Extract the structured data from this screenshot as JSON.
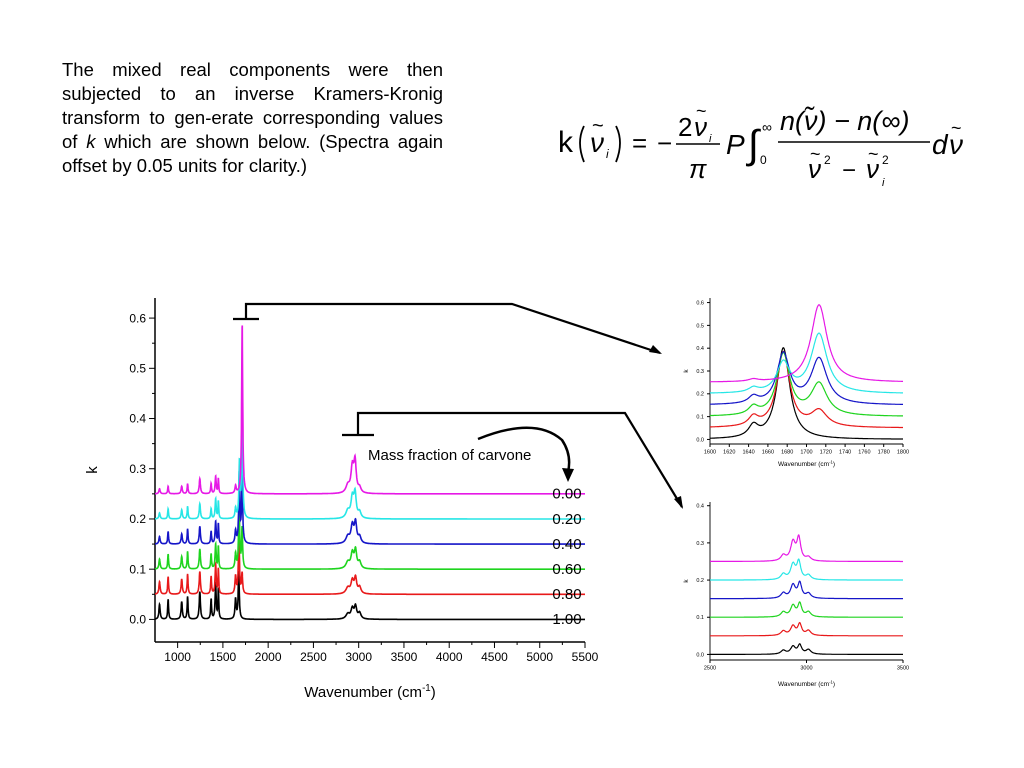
{
  "text": {
    "paragraph_before_k": "The mixed real components were then subjected to an inverse Kramers-Kronig transform to gen-erate corresponding values of",
    "paragraph_k": "k",
    "paragraph_after_k": "which are shown below.  (Spectra again offset by 0.05 units for clarity.)"
  },
  "formula": {
    "lhs": "k",
    "eq": "=",
    "minus": "−",
    "two": "2",
    "pi": "π",
    "P": "P",
    "int_upper": "∞",
    "int_lower": "0",
    "numerator": "n(ν̃) − n(∞)",
    "denominator_sup": "2",
    "d": "d",
    "sub_i": "i"
  },
  "colors": {
    "1.00": "#000000",
    "0.80": "#e8191a",
    "0.60": "#1ed41e",
    "0.40": "#1515c8",
    "0.20": "#26e6e6",
    "0.00": "#e619e6"
  },
  "annotation": "Mass fraction of carvone",
  "chart_data": [
    {
      "type": "line",
      "xlabel": "Wavenumber (cm-1)",
      "xlabel_main": "Wavenumber (cm",
      "xlabel_sup": "-1",
      "xlabel_close": ")",
      "ylabel": "k",
      "xlim": [
        750,
        5500
      ],
      "ylim": [
        -0.045,
        0.64
      ],
      "xticks": [
        1000,
        1500,
        2000,
        2500,
        3000,
        3500,
        4000,
        4500,
        5000,
        5500
      ],
      "xtick_labels": [
        "1000",
        "1500",
        "2000",
        "2500",
        "3000",
        "3500",
        "4000",
        "4500",
        "5000",
        "5500"
      ],
      "yticks": [
        0.0,
        0.1,
        0.2,
        0.3,
        0.4,
        0.5,
        0.6
      ],
      "ytick_labels": [
        "0.0",
        "0.1",
        "0.2",
        "0.3",
        "0.4",
        "0.5",
        "0.6"
      ],
      "series": [
        {
          "name": "1.00",
          "offset": 0.0,
          "label_y": 1.0,
          "peaks": [
            [
              800,
              0.03,
              8
            ],
            [
              895,
              0.04,
              6
            ],
            [
              1045,
              0.035,
              8
            ],
            [
              1110,
              0.045,
              6
            ],
            [
              1245,
              0.055,
              8
            ],
            [
              1370,
              0.04,
              6
            ],
            [
              1420,
              0.07,
              7
            ],
            [
              1450,
              0.06,
              5
            ],
            [
              1640,
              0.04,
              8
            ],
            [
              1675,
              0.095,
              7
            ],
            [
              2880,
              0.01,
              25
            ],
            [
              2930,
              0.02,
              18
            ],
            [
              2965,
              0.024,
              15
            ],
            [
              3010,
              0.012,
              18
            ]
          ]
        },
        {
          "name": "0.80",
          "offset": 0.05,
          "label_y": 0.8,
          "peaks": [
            [
              800,
              0.025,
              8
            ],
            [
              895,
              0.035,
              6
            ],
            [
              1045,
              0.03,
              8
            ],
            [
              1110,
              0.04,
              6
            ],
            [
              1245,
              0.045,
              8
            ],
            [
              1370,
              0.035,
              6
            ],
            [
              1420,
              0.06,
              7
            ],
            [
              1450,
              0.05,
              5
            ],
            [
              1640,
              0.035,
              8
            ],
            [
              1677,
              0.12,
              7
            ],
            [
              1712,
              0.04,
              7
            ],
            [
              2880,
              0.012,
              25
            ],
            [
              2930,
              0.025,
              18
            ],
            [
              2965,
              0.03,
              15
            ],
            [
              3010,
              0.013,
              18
            ]
          ]
        },
        {
          "name": "0.60",
          "offset": 0.1,
          "label_y": 0.6,
          "peaks": [
            [
              800,
              0.02,
              8
            ],
            [
              895,
              0.03,
              6
            ],
            [
              1045,
              0.025,
              8
            ],
            [
              1110,
              0.035,
              6
            ],
            [
              1245,
              0.04,
              8
            ],
            [
              1370,
              0.03,
              6
            ],
            [
              1420,
              0.05,
              7
            ],
            [
              1450,
              0.045,
              5
            ],
            [
              1640,
              0.03,
              8
            ],
            [
              1679,
              0.13,
              7
            ],
            [
              1712,
              0.08,
              7
            ],
            [
              2880,
              0.013,
              25
            ],
            [
              2930,
              0.03,
              18
            ],
            [
              2965,
              0.035,
              15
            ],
            [
              3010,
              0.013,
              18
            ]
          ]
        },
        {
          "name": "0.40",
          "offset": 0.15,
          "label_y": 0.4,
          "peaks": [
            [
              800,
              0.015,
              8
            ],
            [
              895,
              0.025,
              6
            ],
            [
              1045,
              0.02,
              8
            ],
            [
              1110,
              0.03,
              6
            ],
            [
              1245,
              0.035,
              8
            ],
            [
              1370,
              0.025,
              6
            ],
            [
              1420,
              0.045,
              7
            ],
            [
              1450,
              0.04,
              5
            ],
            [
              1640,
              0.025,
              8
            ],
            [
              1681,
              0.14,
              7
            ],
            [
              1712,
              0.14,
              7
            ],
            [
              2880,
              0.014,
              25
            ],
            [
              2930,
              0.035,
              18
            ],
            [
              2965,
              0.04,
              15
            ],
            [
              3010,
              0.013,
              18
            ]
          ]
        },
        {
          "name": "0.20",
          "offset": 0.2,
          "label_y": 0.2,
          "peaks": [
            [
              800,
              0.012,
              8
            ],
            [
              895,
              0.02,
              6
            ],
            [
              1045,
              0.018,
              8
            ],
            [
              1110,
              0.025,
              6
            ],
            [
              1245,
              0.03,
              8
            ],
            [
              1370,
              0.02,
              6
            ],
            [
              1420,
              0.04,
              7
            ],
            [
              1450,
              0.035,
              5
            ],
            [
              1640,
              0.02,
              8
            ],
            [
              1683,
              0.11,
              7
            ],
            [
              1713,
              0.21,
              7
            ],
            [
              2880,
              0.015,
              25
            ],
            [
              2930,
              0.04,
              18
            ],
            [
              2960,
              0.047,
              15
            ],
            [
              3010,
              0.012,
              18
            ]
          ]
        },
        {
          "name": "0.00",
          "offset": 0.25,
          "label_y": 0.0,
          "peaks": [
            [
              800,
              0.01,
              8
            ],
            [
              895,
              0.015,
              6
            ],
            [
              1045,
              0.015,
              8
            ],
            [
              1110,
              0.02,
              6
            ],
            [
              1245,
              0.03,
              8
            ],
            [
              1370,
              0.02,
              6
            ],
            [
              1420,
              0.035,
              7
            ],
            [
              1450,
              0.03,
              5
            ],
            [
              1640,
              0.015,
              8
            ],
            [
              1713,
              0.34,
              7
            ],
            [
              2880,
              0.015,
              25
            ],
            [
              2930,
              0.05,
              18
            ],
            [
              2960,
              0.06,
              15
            ],
            [
              3010,
              0.01,
              18
            ]
          ]
        }
      ]
    },
    {
      "type": "line",
      "xlabel": "Wavenumber (cm-1)",
      "xlabel_main": "Wavenumber (cm",
      "xlabel_sup": "-1",
      "xlabel_close": ")",
      "ylabel": "k",
      "xlim": [
        1600,
        1800
      ],
      "ylim": [
        -0.02,
        0.62
      ],
      "xticks": [
        1600,
        1620,
        1640,
        1660,
        1680,
        1700,
        1720,
        1740,
        1760,
        1780,
        1800
      ],
      "xtick_labels": [
        "1600",
        "1620",
        "1640",
        "1660",
        "1680",
        "1700",
        "1720",
        "1740",
        "1760",
        "1780",
        "1800"
      ],
      "yticks": [
        0.0,
        0.1,
        0.2,
        0.3,
        0.4,
        0.5,
        0.6
      ],
      "ytick_labels": [
        "0.0",
        "0.1",
        "0.2",
        "0.3",
        "0.4",
        "0.5",
        "0.6"
      ],
      "series": [
        {
          "name": "1.00",
          "offset": 0.0,
          "peaks": [
            [
              1645,
              0.05,
              6
            ],
            [
              1676,
              0.4,
              8
            ]
          ]
        },
        {
          "name": "0.80",
          "offset": 0.05,
          "peaks": [
            [
              1645,
              0.04,
              6
            ],
            [
              1676,
              0.33,
              8
            ],
            [
              1713,
              0.07,
              10
            ]
          ]
        },
        {
          "name": "0.60",
          "offset": 0.1,
          "peaks": [
            [
              1645,
              0.035,
              6
            ],
            [
              1676,
              0.27,
              8
            ],
            [
              1713,
              0.14,
              10
            ]
          ]
        },
        {
          "name": "0.40",
          "offset": 0.15,
          "peaks": [
            [
              1645,
              0.03,
              6
            ],
            [
              1676,
              0.22,
              8
            ],
            [
              1713,
              0.2,
              10
            ]
          ]
        },
        {
          "name": "0.20",
          "offset": 0.2,
          "peaks": [
            [
              1645,
              0.02,
              6
            ],
            [
              1676,
              0.13,
              8
            ],
            [
              1713,
              0.26,
              10
            ]
          ]
        },
        {
          "name": "0.00",
          "offset": 0.25,
          "peaks": [
            [
              1645,
              0.01,
              6
            ],
            [
              1713,
              0.34,
              10
            ]
          ]
        }
      ]
    },
    {
      "type": "line",
      "xlabel": "Wavenumber (cm-1)",
      "xlabel_main": "Wavenumber (cm",
      "xlabel_sup": "-1",
      "xlabel_close": ")",
      "ylabel": "k",
      "xlim": [
        2500,
        3500
      ],
      "ylim": [
        -0.015,
        0.41
      ],
      "xticks": [
        2500,
        3000,
        3500
      ],
      "xtick_labels": [
        "2500",
        "3000",
        "3500"
      ],
      "yticks": [
        0.0,
        0.1,
        0.2,
        0.3,
        0.4
      ],
      "ytick_labels": [
        "0.0",
        "0.1",
        "0.2",
        "0.3",
        "0.4"
      ],
      "series": [
        {
          "name": "1.00",
          "offset": 0.0,
          "peaks": [
            [
              2880,
              0.01,
              15
            ],
            [
              2930,
              0.02,
              15
            ],
            [
              2965,
              0.024,
              12
            ],
            [
              3010,
              0.012,
              15
            ]
          ]
        },
        {
          "name": "0.80",
          "offset": 0.05,
          "peaks": [
            [
              2880,
              0.012,
              15
            ],
            [
              2930,
              0.025,
              15
            ],
            [
              2965,
              0.03,
              12
            ],
            [
              3010,
              0.013,
              15
            ]
          ]
        },
        {
          "name": "0.60",
          "offset": 0.1,
          "peaks": [
            [
              2880,
              0.013,
              15
            ],
            [
              2930,
              0.03,
              15
            ],
            [
              2965,
              0.035,
              12
            ],
            [
              3010,
              0.013,
              15
            ]
          ]
        },
        {
          "name": "0.40",
          "offset": 0.15,
          "peaks": [
            [
              2880,
              0.014,
              15
            ],
            [
              2930,
              0.035,
              15
            ],
            [
              2965,
              0.04,
              12
            ],
            [
              3010,
              0.013,
              15
            ]
          ]
        },
        {
          "name": "0.20",
          "offset": 0.2,
          "peaks": [
            [
              2880,
              0.015,
              15
            ],
            [
              2930,
              0.04,
              15
            ],
            [
              2960,
              0.047,
              12
            ],
            [
              3010,
              0.012,
              15
            ]
          ]
        },
        {
          "name": "0.00",
          "offset": 0.25,
          "peaks": [
            [
              2880,
              0.015,
              15
            ],
            [
              2930,
              0.05,
              15
            ],
            [
              2960,
              0.06,
              12
            ],
            [
              3010,
              0.01,
              15
            ]
          ]
        }
      ]
    }
  ]
}
